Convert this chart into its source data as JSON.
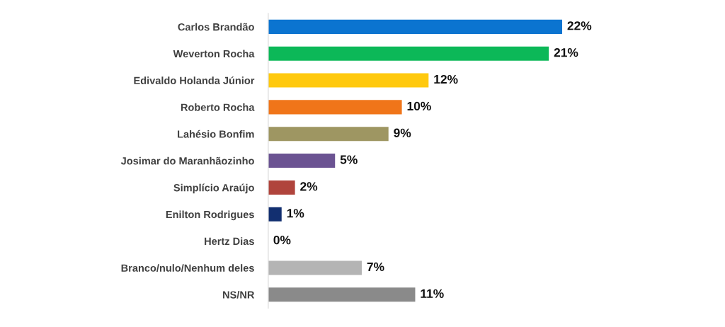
{
  "chart_data": {
    "type": "bar",
    "orientation": "horizontal",
    "categories": [
      "Carlos Brandão",
      "Weverton Rocha",
      "Edivaldo Holanda Júnior",
      "Roberto Rocha",
      "Lahésio Bonfim",
      "Josimar do Maranhãozinho",
      "Simplício Araújo",
      "Enilton Rodrigues",
      "Hertz Dias",
      "Branco/nulo/Nenhum deles",
      "NS/NR"
    ],
    "values": [
      22,
      21,
      12,
      10,
      9,
      5,
      2,
      1,
      0,
      7,
      11
    ],
    "colors": [
      "#0b74d0",
      "#0cb858",
      "#ffc90e",
      "#f07519",
      "#9e9662",
      "#6b5392",
      "#b0443c",
      "#122f70",
      "#ffffff",
      "#b4b4b4",
      "#8a8a8a"
    ],
    "value_labels": [
      "22%",
      "21%",
      "12%",
      "10%",
      "9%",
      "5%",
      "2%",
      "1%",
      "0%",
      "7%",
      "11%"
    ],
    "tick_labels": "y",
    "grid": false
  }
}
